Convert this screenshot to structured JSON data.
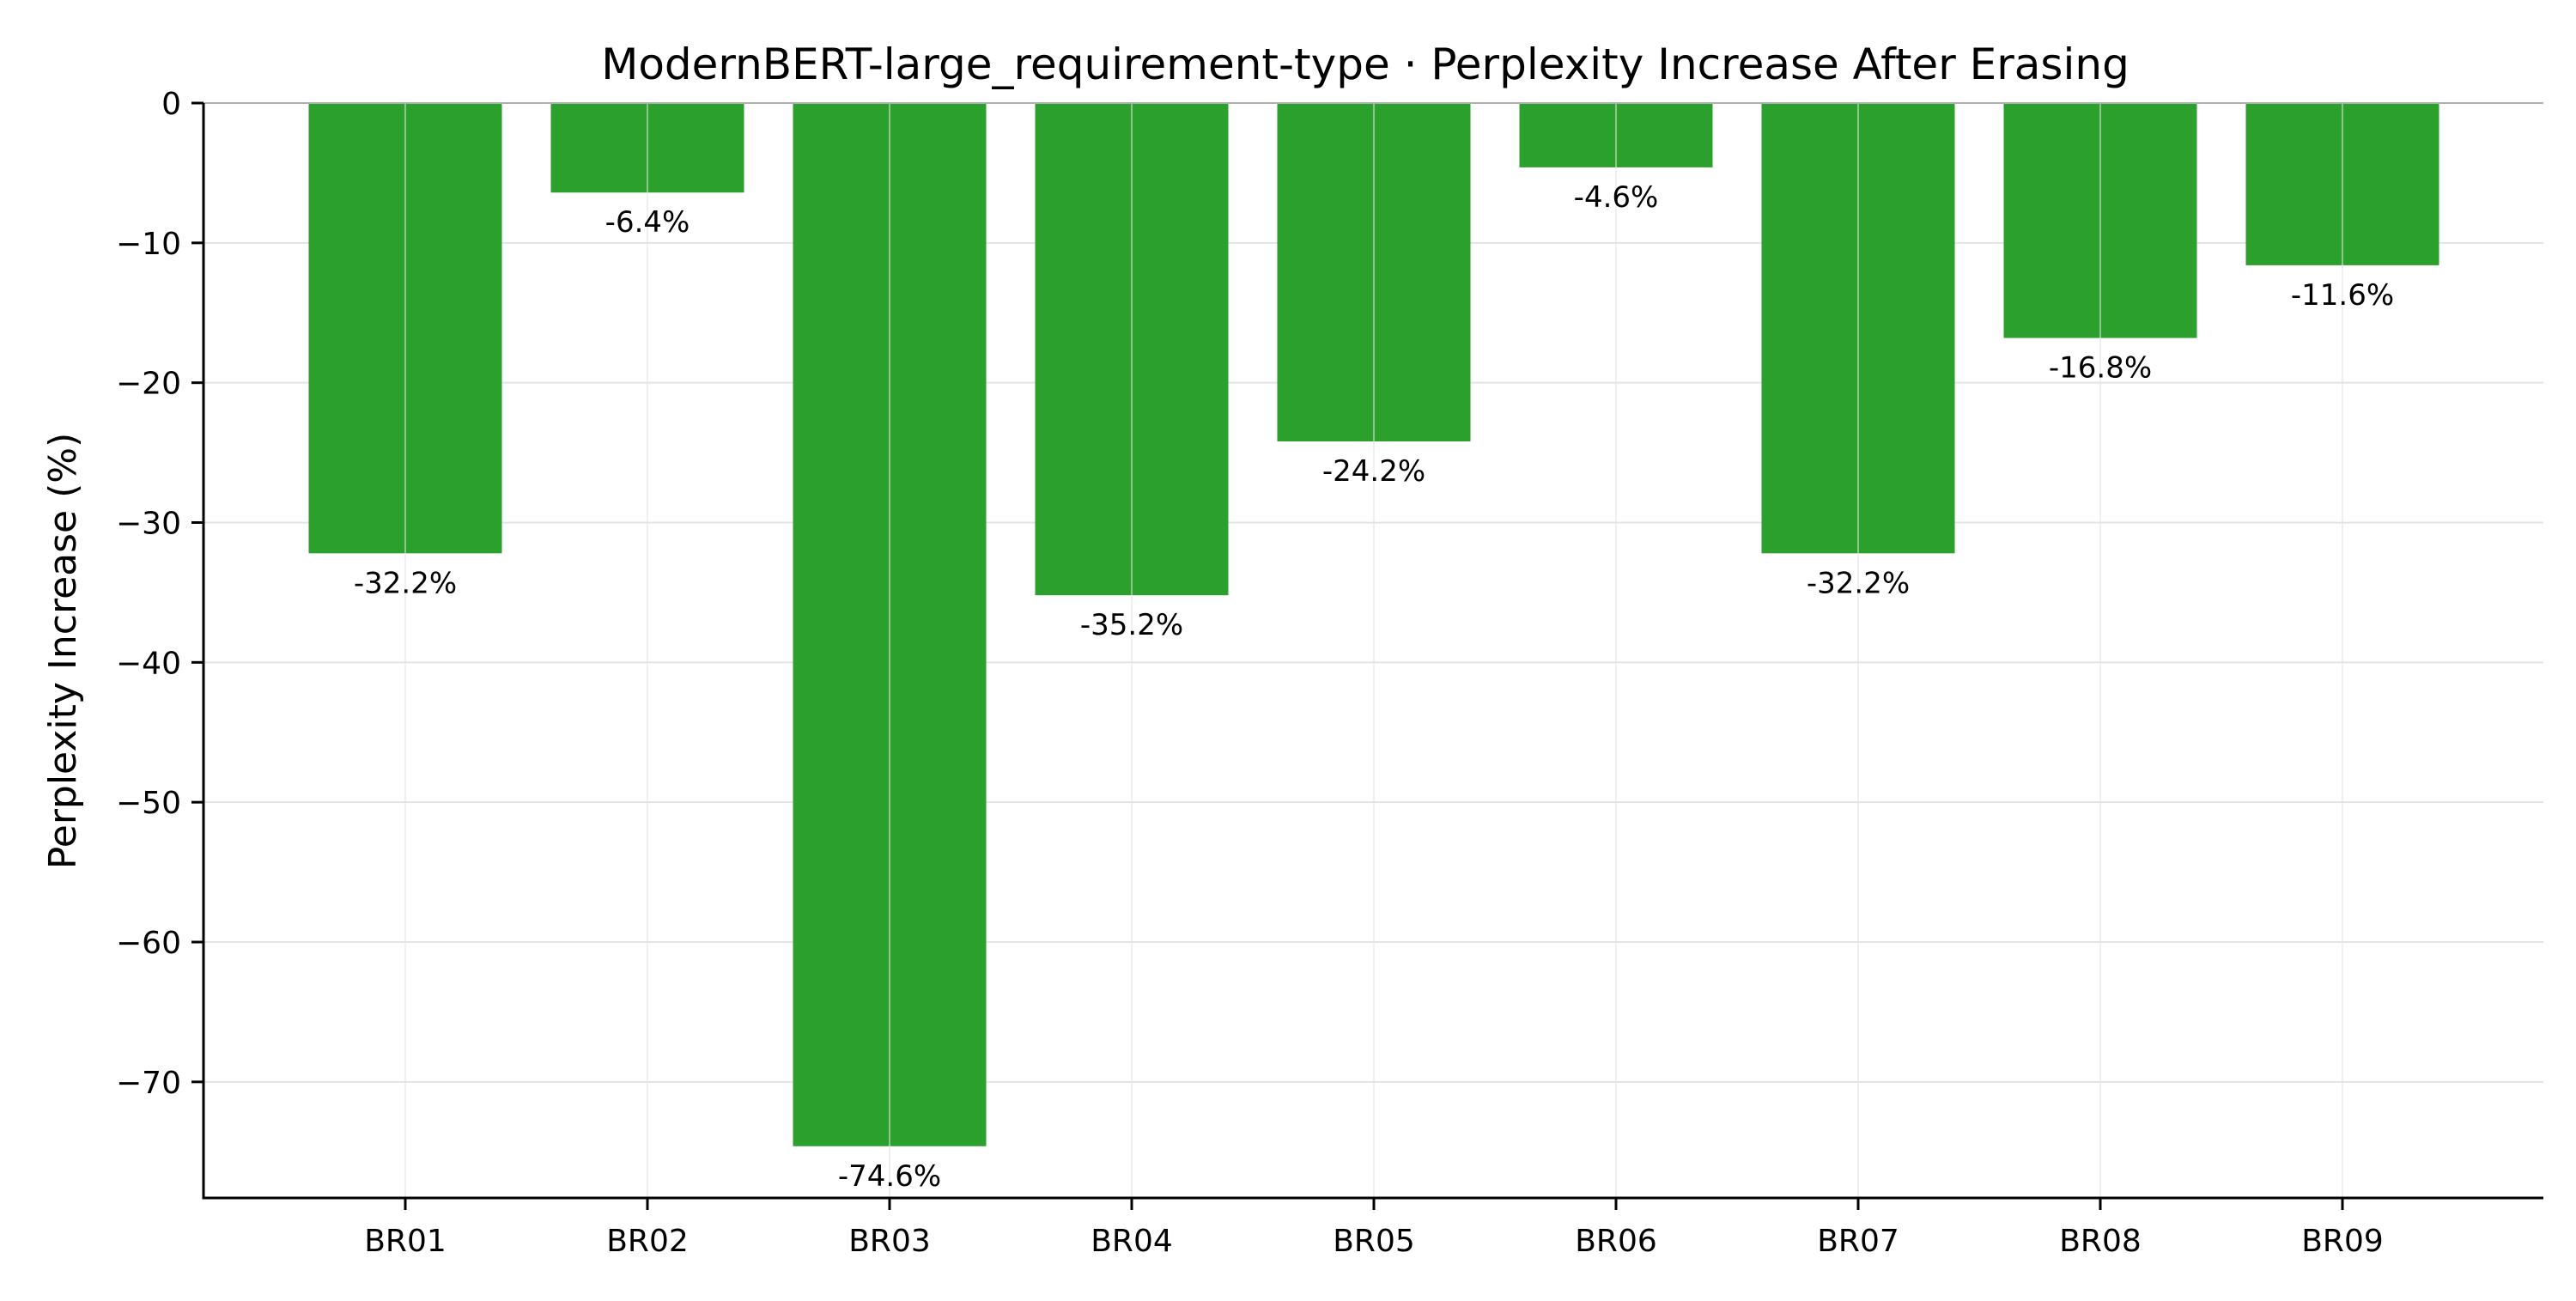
{
  "chart_data": {
    "type": "bar",
    "title": "ModernBERT-large_requirement-type · Perplexity Increase After Erasing",
    "xlabel": "",
    "ylabel": "Perplexity Increase (%)",
    "categories": [
      "BR01",
      "BR02",
      "BR03",
      "BR04",
      "BR05",
      "BR06",
      "BR07",
      "BR08",
      "BR09"
    ],
    "values": [
      -32.2,
      -6.4,
      -74.6,
      -35.2,
      -24.2,
      -4.6,
      -32.2,
      -16.8,
      -11.6
    ],
    "data_labels": [
      "-32.2%",
      "-6.4%",
      "-74.6%",
      "-35.2%",
      "-24.2%",
      "-4.6%",
      "-32.2%",
      "-16.8%",
      "-11.6%"
    ],
    "ylim": [
      -78.3,
      0
    ],
    "yticks": [
      0,
      -10,
      -20,
      -30,
      -40,
      -50,
      -60,
      -70
    ],
    "ytick_labels": [
      "0",
      "−10",
      "−20",
      "−30",
      "−40",
      "−50",
      "−60",
      "−70"
    ],
    "grid": true,
    "bar_color": "#2ca02c"
  }
}
